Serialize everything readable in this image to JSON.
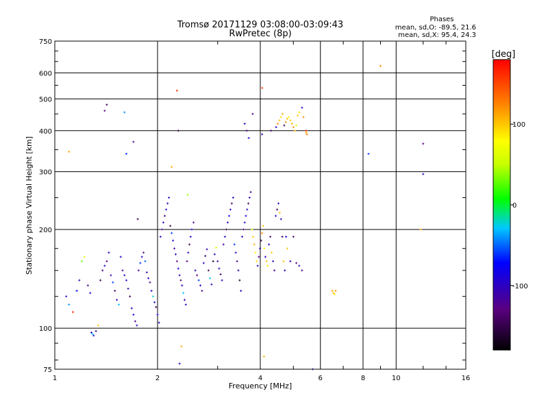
{
  "chart_data": {
    "type": "scatter",
    "title": "Tromsø 20171129 03:08:00-03:09:43",
    "subtitle": "RwPretec (8p)",
    "xlabel": "Frequency [MHz]",
    "ylabel": "Stationary phase Virtual Height [km]",
    "xscale": "log",
    "yscale": "log",
    "xlim": [
      1,
      16
    ],
    "ylim": [
      75,
      750
    ],
    "grid": true,
    "x_ticks": [
      1,
      2,
      4,
      6,
      8,
      10,
      16
    ],
    "x_tick_labels": [
      "1",
      "2",
      "4",
      "6",
      "8",
      "10",
      "16"
    ],
    "y_ticks": [
      75,
      100,
      200,
      300,
      400,
      500,
      600,
      750
    ],
    "y_tick_labels": [
      "75",
      "100",
      "200",
      "300",
      "400",
      "500",
      "600",
      "750"
    ],
    "stats": {
      "heading": "Phases",
      "line_o": "mean, sd,O: -89.5, 21.6",
      "line_x": "mean, sd,X:  95.4, 24.3"
    },
    "colorbar": {
      "label": "[deg]",
      "range": [
        -180,
        180
      ],
      "ticks": [
        100,
        0,
        -100
      ],
      "tick_labels": [
        "100",
        "0",
        "-100"
      ]
    },
    "series": [
      {
        "points": [
          [
            1.08,
            125,
            -100
          ],
          [
            1.1,
            118,
            -40
          ],
          [
            1.13,
            112,
            160
          ],
          [
            1.16,
            130,
            -70
          ],
          [
            1.18,
            140,
            -110
          ],
          [
            1.2,
            160,
            30
          ],
          [
            1.22,
            165,
            60
          ],
          [
            1.25,
            135,
            -120
          ],
          [
            1.27,
            128,
            -95
          ],
          [
            1.28,
            97,
            -90
          ],
          [
            1.29,
            96,
            -30
          ],
          [
            1.3,
            95,
            -100
          ],
          [
            1.32,
            98,
            -120
          ],
          [
            1.34,
            102,
            100
          ],
          [
            1.36,
            140,
            -150
          ],
          [
            1.38,
            150,
            -120
          ],
          [
            1.4,
            155,
            -100
          ],
          [
            1.42,
            160,
            -130
          ],
          [
            1.44,
            170,
            -90
          ],
          [
            1.46,
            145,
            -110
          ],
          [
            1.48,
            138,
            -60
          ],
          [
            1.5,
            130,
            -140
          ],
          [
            1.52,
            122,
            -100
          ],
          [
            1.54,
            118,
            -30
          ],
          [
            1.56,
            165,
            -100
          ],
          [
            1.58,
            150,
            -120
          ],
          [
            1.6,
            145,
            -100
          ],
          [
            1.62,
            140,
            -90
          ],
          [
            1.64,
            132,
            -110
          ],
          [
            1.66,
            125,
            -150
          ],
          [
            1.68,
            115,
            -100
          ],
          [
            1.7,
            110,
            -80
          ],
          [
            1.72,
            105,
            -120
          ],
          [
            1.74,
            102,
            -100
          ],
          [
            1.76,
            150,
            -120
          ],
          [
            1.78,
            158,
            -60
          ],
          [
            1.8,
            165,
            -100
          ],
          [
            1.82,
            170,
            -130
          ],
          [
            1.84,
            160,
            -50
          ],
          [
            1.86,
            148,
            -110
          ],
          [
            1.88,
            142,
            -100
          ],
          [
            1.9,
            138,
            -130
          ],
          [
            1.92,
            130,
            -100
          ],
          [
            1.94,
            125,
            -20
          ],
          [
            1.96,
            120,
            -100
          ],
          [
            1.98,
            116,
            -150
          ],
          [
            2.0,
            110,
            -90
          ],
          [
            2.02,
            104,
            -100
          ],
          [
            2.04,
            190,
            -100
          ],
          [
            2.06,
            200,
            -120
          ],
          [
            2.08,
            210,
            -100
          ],
          [
            2.1,
            220,
            -140
          ],
          [
            2.12,
            230,
            -90
          ],
          [
            2.14,
            240,
            -110
          ],
          [
            2.16,
            250,
            -100
          ],
          [
            2.18,
            205,
            -150
          ],
          [
            2.2,
            195,
            -60
          ],
          [
            2.22,
            185,
            -100
          ],
          [
            2.24,
            175,
            -120
          ],
          [
            2.26,
            168,
            -100
          ],
          [
            2.28,
            160,
            -130
          ],
          [
            2.3,
            152,
            -80
          ],
          [
            2.32,
            145,
            -100
          ],
          [
            2.34,
            140,
            -140
          ],
          [
            2.36,
            135,
            -100
          ],
          [
            2.38,
            128,
            -30
          ],
          [
            2.4,
            122,
            -110
          ],
          [
            2.42,
            118,
            -100
          ],
          [
            2.44,
            160,
            -130
          ],
          [
            2.46,
            170,
            -100
          ],
          [
            2.48,
            180,
            -150
          ],
          [
            2.5,
            190,
            -90
          ],
          [
            2.52,
            200,
            -100
          ],
          [
            2.55,
            210,
            -120
          ],
          [
            2.58,
            150,
            -100
          ],
          [
            2.61,
            145,
            -130
          ],
          [
            2.64,
            140,
            -60
          ],
          [
            2.67,
            135,
            -100
          ],
          [
            2.7,
            130,
            -120
          ],
          [
            2.73,
            158,
            -100
          ],
          [
            2.76,
            166,
            -150
          ],
          [
            2.79,
            174,
            -100
          ],
          [
            2.82,
            150,
            -140
          ],
          [
            2.85,
            142,
            -30
          ],
          [
            2.88,
            136,
            -100
          ],
          [
            2.91,
            160,
            -160
          ],
          [
            2.94,
            168,
            -100
          ],
          [
            2.97,
            176,
            60
          ],
          [
            3.0,
            160,
            -110
          ],
          [
            3.03,
            152,
            -100
          ],
          [
            3.06,
            146,
            -140
          ],
          [
            3.09,
            140,
            -100
          ],
          [
            3.12,
            180,
            -120
          ],
          [
            3.15,
            190,
            -100
          ],
          [
            3.18,
            200,
            -150
          ],
          [
            3.21,
            210,
            -100
          ],
          [
            3.24,
            220,
            -80
          ],
          [
            3.27,
            230,
            -100
          ],
          [
            3.3,
            240,
            -140
          ],
          [
            3.33,
            250,
            -100
          ],
          [
            3.36,
            180,
            -60
          ],
          [
            3.39,
            170,
            -100
          ],
          [
            3.42,
            160,
            -120
          ],
          [
            3.45,
            150,
            -100
          ],
          [
            3.48,
            140,
            -160
          ],
          [
            3.51,
            130,
            -100
          ],
          [
            3.54,
            190,
            -100
          ],
          [
            3.57,
            200,
            -130
          ],
          [
            3.6,
            210,
            -100
          ],
          [
            3.63,
            220,
            -90
          ],
          [
            3.66,
            230,
            -100
          ],
          [
            3.69,
            240,
            -140
          ],
          [
            3.72,
            250,
            -100
          ],
          [
            3.75,
            260,
            -120
          ],
          [
            3.78,
            200,
            60
          ],
          [
            3.81,
            190,
            100
          ],
          [
            3.84,
            180,
            110
          ],
          [
            3.87,
            170,
            80
          ],
          [
            3.9,
            160,
            90
          ],
          [
            3.93,
            155,
            -100
          ],
          [
            3.96,
            165,
            -130
          ],
          [
            3.99,
            175,
            -100
          ],
          [
            4.02,
            185,
            -150
          ],
          [
            4.05,
            195,
            120
          ],
          [
            4.08,
            205,
            100
          ],
          [
            4.11,
            175,
            80
          ],
          [
            4.14,
            165,
            -100
          ],
          [
            4.17,
            160,
            100
          ],
          [
            4.2,
            155,
            90
          ],
          [
            4.24,
            180,
            -100
          ],
          [
            4.28,
            190,
            -140
          ],
          [
            4.32,
            170,
            100
          ],
          [
            4.36,
            160,
            -100
          ],
          [
            4.4,
            150,
            -120
          ],
          [
            4.44,
            220,
            -100
          ],
          [
            4.48,
            230,
            -140
          ],
          [
            4.52,
            240,
            -100
          ],
          [
            4.56,
            225,
            100
          ],
          [
            4.6,
            215,
            -100
          ],
          [
            4.64,
            190,
            -150
          ],
          [
            4.68,
            160,
            100
          ],
          [
            4.72,
            150,
            -100
          ],
          [
            4.76,
            190,
            -90
          ],
          [
            4.8,
            175,
            100
          ],
          [
            4.9,
            160,
            -100
          ],
          [
            5.0,
            190,
            -140
          ],
          [
            5.1,
            158,
            -130
          ],
          [
            5.2,
            155,
            -100
          ],
          [
            5.3,
            150,
            -120
          ],
          [
            3.6,
            420,
            -100
          ],
          [
            3.65,
            400,
            -140
          ],
          [
            3.7,
            380,
            -100
          ],
          [
            3.8,
            450,
            -120
          ],
          [
            4.05,
            390,
            -100
          ],
          [
            4.3,
            400,
            -140
          ],
          [
            4.45,
            410,
            -100
          ],
          [
            4.5,
            420,
            120
          ],
          [
            4.55,
            430,
            100
          ],
          [
            4.6,
            440,
            90
          ],
          [
            4.65,
            450,
            110
          ],
          [
            4.7,
            415,
            -150
          ],
          [
            4.75,
            425,
            120
          ],
          [
            4.8,
            435,
            100
          ],
          [
            4.85,
            440,
            80
          ],
          [
            4.9,
            430,
            100
          ],
          [
            4.95,
            420,
            110
          ],
          [
            5.0,
            410,
            120
          ],
          [
            5.05,
            400,
            100
          ],
          [
            5.1,
            415,
            60
          ],
          [
            5.15,
            445,
            100
          ],
          [
            5.2,
            455,
            90
          ],
          [
            5.3,
            470,
            -100
          ],
          [
            5.35,
            440,
            120
          ],
          [
            5.45,
            400,
            160
          ],
          [
            6.5,
            130,
            110
          ],
          [
            6.55,
            128,
            100
          ],
          [
            6.6,
            127,
            90
          ],
          [
            6.65,
            130,
            120
          ],
          [
            8.3,
            340,
            -60
          ],
          [
            9.0,
            630,
            120
          ],
          [
            12.0,
            365,
            -130
          ],
          [
            12.0,
            295,
            -100
          ],
          [
            11.8,
            200,
            110
          ],
          [
            1.1,
            345,
            110
          ],
          [
            1.4,
            460,
            -130
          ],
          [
            1.42,
            480,
            -150
          ],
          [
            1.6,
            455,
            -40
          ],
          [
            1.62,
            340,
            -60
          ],
          [
            1.7,
            370,
            -120
          ],
          [
            1.75,
            215,
            -150
          ],
          [
            2.2,
            310,
            110
          ],
          [
            2.28,
            530,
            160
          ],
          [
            2.3,
            400,
            -150
          ],
          [
            2.32,
            78,
            -100
          ],
          [
            2.35,
            88,
            110
          ],
          [
            2.45,
            255,
            40
          ],
          [
            4.05,
            540,
            150
          ],
          [
            4.1,
            82,
            110
          ],
          [
            5.7,
            75,
            -100
          ],
          [
            5.45,
            395,
            110
          ],
          [
            5.48,
            390,
            130
          ]
        ]
      }
    ]
  }
}
